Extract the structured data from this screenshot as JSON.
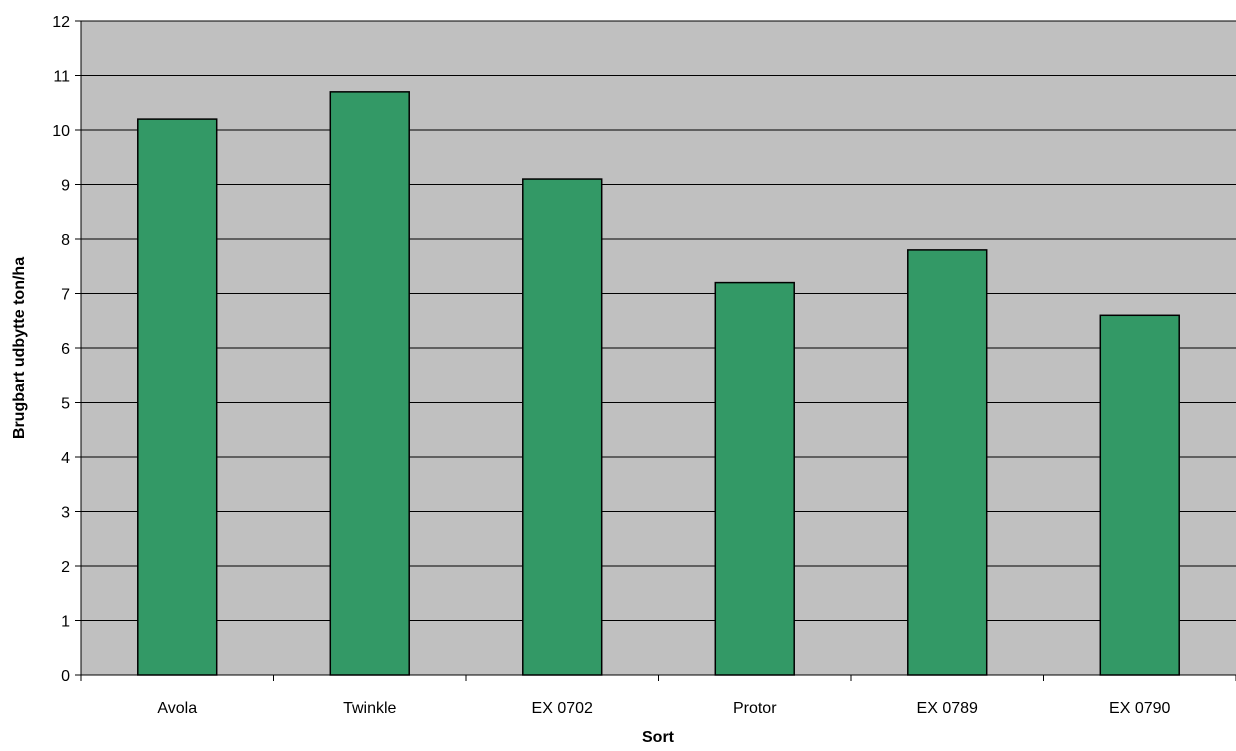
{
  "chart_data": {
    "type": "bar",
    "title": "",
    "xlabel": "Sort",
    "ylabel": "Brugbart udbytte ton/ha",
    "categories": [
      "Avola",
      "Twinkle",
      "EX 0702",
      "Protor",
      "EX 0789",
      "EX 0790"
    ],
    "values": [
      10.2,
      10.7,
      9.1,
      7.2,
      7.8,
      6.6
    ],
    "ylim": [
      0,
      12
    ],
    "yticks": [
      0,
      1,
      2,
      3,
      4,
      5,
      6,
      7,
      8,
      9,
      10,
      11,
      12
    ],
    "grid": true,
    "legend": "none",
    "bar_color": "#339966",
    "plot_background": "#c0c0c0"
  }
}
